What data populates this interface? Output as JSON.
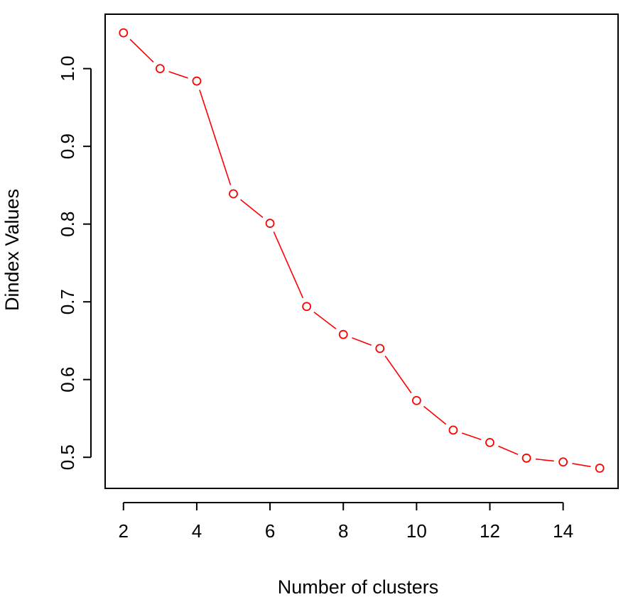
{
  "chart_data": {
    "type": "line",
    "xlabel": "Number of clusters",
    "ylabel": "Dindex Values",
    "xlim": [
      1.5,
      15.5
    ],
    "ylim": [
      0.46,
      1.07
    ],
    "x_ticks": [
      2,
      4,
      6,
      8,
      10,
      12,
      14
    ],
    "y_ticks": [
      0.5,
      0.6,
      0.7,
      0.8,
      0.9,
      1.0
    ],
    "x_tick_labels": [
      "2",
      "4",
      "6",
      "8",
      "10",
      "12",
      "14"
    ],
    "y_tick_labels": [
      "0.5",
      "0.6",
      "0.7",
      "0.8",
      "0.9",
      "1.0"
    ],
    "grid": false,
    "legend": "none",
    "series": [
      {
        "color": "#ff0000",
        "marker": "open-circle",
        "x": [
          2,
          3,
          4,
          5,
          6,
          7,
          8,
          9,
          10,
          11,
          12,
          13,
          14,
          15
        ],
        "values": [
          1.046,
          1.0,
          0.984,
          0.839,
          0.801,
          0.694,
          0.658,
          0.64,
          0.573,
          0.535,
          0.519,
          0.499,
          0.494,
          0.486
        ]
      }
    ]
  }
}
